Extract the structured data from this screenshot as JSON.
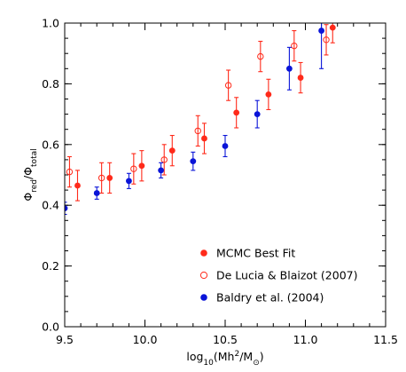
{
  "chart_data": {
    "type": "scatter",
    "title": "",
    "xlabel": {
      "base": "log",
      "base_sub": "10",
      "open": "(Mh",
      "sup": "2",
      "mid": "/M",
      "sub": "⊙",
      "close": ")"
    },
    "ylabel": {
      "a": "Φ",
      "a_sub": "red",
      "slash": "/",
      "b": "Φ",
      "b_sub": "total"
    },
    "xlim": [
      9.5,
      11.5
    ],
    "ylim": [
      0.0,
      1.0
    ],
    "x_ticks": [
      {
        "value": 9.5,
        "label": "9.5"
      },
      {
        "value": 10.0,
        "label": "10.0"
      },
      {
        "value": 10.5,
        "label": "10.5"
      },
      {
        "value": 11.0,
        "label": "11.0"
      },
      {
        "value": 11.5,
        "label": "11.5"
      }
    ],
    "y_ticks": [
      {
        "value": 0.0,
        "label": "0.0"
      },
      {
        "value": 0.2,
        "label": "0.2"
      },
      {
        "value": 0.4,
        "label": "0.4"
      },
      {
        "value": 0.6,
        "label": "0.6"
      },
      {
        "value": 0.8,
        "label": "0.8"
      },
      {
        "value": 1.0,
        "label": "1.0"
      }
    ],
    "x_minor_step": 0.1,
    "y_minor_step": 0.05,
    "grid": false,
    "legend_position": "bottom-right",
    "series": [
      {
        "name": "MCMC Best Fit",
        "color": "#ff2a1a",
        "marker": "filled-circle",
        "points": [
          {
            "x": 9.58,
            "y": 0.465,
            "lo": 0.415,
            "hi": 0.515
          },
          {
            "x": 9.78,
            "y": 0.49,
            "lo": 0.44,
            "hi": 0.54
          },
          {
            "x": 9.98,
            "y": 0.53,
            "lo": 0.48,
            "hi": 0.58
          },
          {
            "x": 10.17,
            "y": 0.58,
            "lo": 0.53,
            "hi": 0.63
          },
          {
            "x": 10.37,
            "y": 0.62,
            "lo": 0.57,
            "hi": 0.67
          },
          {
            "x": 10.57,
            "y": 0.705,
            "lo": 0.655,
            "hi": 0.755
          },
          {
            "x": 10.77,
            "y": 0.765,
            "lo": 0.715,
            "hi": 0.815
          },
          {
            "x": 10.97,
            "y": 0.82,
            "lo": 0.77,
            "hi": 0.87
          },
          {
            "x": 11.17,
            "y": 0.985,
            "lo": 0.935,
            "hi": 1.035
          }
        ]
      },
      {
        "name": "De Lucia & Blaizot (2007)",
        "color": "#ff2a1a",
        "marker": "open-circle",
        "points": [
          {
            "x": 9.53,
            "y": 0.51,
            "lo": 0.46,
            "hi": 0.56
          },
          {
            "x": 9.73,
            "y": 0.49,
            "lo": 0.44,
            "hi": 0.54
          },
          {
            "x": 9.93,
            "y": 0.52,
            "lo": 0.47,
            "hi": 0.57
          },
          {
            "x": 10.12,
            "y": 0.55,
            "lo": 0.5,
            "hi": 0.6
          },
          {
            "x": 10.33,
            "y": 0.645,
            "lo": 0.595,
            "hi": 0.695
          },
          {
            "x": 10.52,
            "y": 0.795,
            "lo": 0.745,
            "hi": 0.845
          },
          {
            "x": 10.72,
            "y": 0.89,
            "lo": 0.84,
            "hi": 0.94
          },
          {
            "x": 10.93,
            "y": 0.925,
            "lo": 0.875,
            "hi": 0.975
          },
          {
            "x": 11.13,
            "y": 0.945,
            "lo": 0.895,
            "hi": 0.995
          }
        ]
      },
      {
        "name": "Baldry et al. (2004)",
        "color": "#0a14d8",
        "marker": "filled-circle",
        "points": [
          {
            "x": 9.5,
            "y": 0.39,
            "lo": 0.37,
            "hi": 0.41
          },
          {
            "x": 9.7,
            "y": 0.44,
            "lo": 0.42,
            "hi": 0.46
          },
          {
            "x": 9.9,
            "y": 0.48,
            "lo": 0.455,
            "hi": 0.505
          },
          {
            "x": 10.1,
            "y": 0.515,
            "lo": 0.49,
            "hi": 0.54
          },
          {
            "x": 10.3,
            "y": 0.545,
            "lo": 0.515,
            "hi": 0.575
          },
          {
            "x": 10.5,
            "y": 0.595,
            "lo": 0.56,
            "hi": 0.63
          },
          {
            "x": 10.7,
            "y": 0.7,
            "lo": 0.655,
            "hi": 0.745
          },
          {
            "x": 10.9,
            "y": 0.85,
            "lo": 0.78,
            "hi": 0.92
          },
          {
            "x": 11.1,
            "y": 0.975,
            "lo": 0.85,
            "hi": 1.1
          }
        ]
      }
    ]
  }
}
